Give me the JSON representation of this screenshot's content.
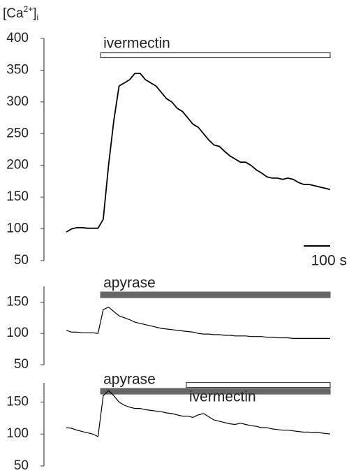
{
  "chart_data": [
    {
      "type": "line",
      "ylabel": {
        "open": "[Ca",
        "sup": "2+",
        "close": "]",
        "sub": "i"
      },
      "xlim": [
        0,
        1000
      ],
      "ylim": [
        50,
        400
      ],
      "yticks": [
        50,
        100,
        150,
        200,
        250,
        300,
        350,
        400
      ],
      "x": [
        0,
        20,
        40,
        60,
        80,
        100,
        120,
        140,
        160,
        180,
        200,
        220,
        240,
        260,
        280,
        300,
        320,
        340,
        360,
        380,
        400,
        420,
        440,
        460,
        480,
        500,
        520,
        540,
        560,
        580,
        600,
        620,
        640,
        660,
        680,
        700,
        720,
        740,
        760,
        780,
        800,
        820,
        840,
        860,
        880,
        900,
        920,
        940,
        960,
        980,
        1000
      ],
      "series": [
        {
          "color": "#000000",
          "values": [
            95,
            100,
            102,
            102,
            101,
            101,
            101,
            115,
            200,
            270,
            325,
            330,
            335,
            345,
            345,
            335,
            330,
            325,
            315,
            305,
            300,
            290,
            285,
            275,
            265,
            260,
            250,
            240,
            232,
            230,
            222,
            215,
            210,
            205,
            205,
            200,
            193,
            188,
            182,
            180,
            180,
            178,
            180,
            178,
            173,
            170,
            170,
            168,
            166,
            164,
            162
          ]
        }
      ],
      "bars": [
        {
          "label": "ivermectin",
          "start": 130,
          "end": 1000,
          "style": "open",
          "color": "#444444",
          "label_position": "above"
        }
      ],
      "scale_bar": {
        "value": 100,
        "label": "100 s"
      }
    },
    {
      "type": "line",
      "xlim": [
        0,
        1000
      ],
      "ylim": [
        50,
        175
      ],
      "yticks": [
        50,
        100,
        150
      ],
      "x": [
        0,
        20,
        40,
        60,
        80,
        100,
        120,
        140,
        160,
        180,
        200,
        220,
        240,
        260,
        280,
        300,
        320,
        340,
        360,
        380,
        400,
        420,
        440,
        460,
        480,
        500,
        520,
        540,
        560,
        580,
        600,
        620,
        640,
        660,
        680,
        700,
        720,
        740,
        760,
        780,
        800,
        820,
        840,
        860,
        880,
        900,
        920,
        940,
        960,
        980,
        1000
      ],
      "series": [
        {
          "color": "#000000",
          "values": [
            105,
            102,
            102,
            101,
            101,
            101,
            100,
            138,
            142,
            135,
            128,
            125,
            122,
            118,
            116,
            114,
            112,
            110,
            108,
            107,
            106,
            105,
            104,
            103,
            102,
            100,
            99,
            99,
            98,
            98,
            97,
            97,
            96,
            96,
            96,
            95,
            95,
            95,
            94,
            94,
            93,
            93,
            93,
            92,
            92,
            92,
            92,
            92,
            92,
            92,
            92
          ]
        }
      ],
      "bars": [
        {
          "label": "apyrase",
          "start": 130,
          "end": 1000,
          "style": "filled",
          "color": "#666666",
          "label_position": "above"
        }
      ]
    },
    {
      "type": "line",
      "xlim": [
        0,
        1000
      ],
      "ylim": [
        50,
        180
      ],
      "yticks": [
        50,
        100,
        150
      ],
      "x": [
        0,
        20,
        40,
        60,
        80,
        100,
        120,
        140,
        160,
        180,
        200,
        220,
        240,
        260,
        280,
        300,
        320,
        340,
        360,
        380,
        400,
        420,
        440,
        460,
        480,
        500,
        520,
        540,
        560,
        580,
        600,
        620,
        640,
        660,
        680,
        700,
        720,
        740,
        760,
        780,
        800,
        820,
        840,
        860,
        880,
        900,
        920,
        940,
        960,
        980,
        1000
      ],
      "series": [
        {
          "color": "#000000",
          "values": [
            110,
            109,
            106,
            104,
            102,
            100,
            96,
            160,
            168,
            160,
            150,
            145,
            142,
            140,
            140,
            138,
            137,
            136,
            135,
            133,
            132,
            130,
            128,
            128,
            126,
            130,
            132,
            127,
            122,
            120,
            118,
            116,
            115,
            117,
            115,
            113,
            112,
            110,
            110,
            108,
            107,
            106,
            106,
            105,
            104,
            103,
            103,
            102,
            102,
            101,
            100
          ]
        }
      ],
      "bars": [
        {
          "label": "apyrase",
          "start": 130,
          "end": 1000,
          "style": "filled",
          "color": "#666666",
          "label_position": "above"
        },
        {
          "label": "ivermectin",
          "start": 455,
          "end": 1000,
          "style": "open",
          "color": "#444444",
          "label_position": "below"
        }
      ]
    }
  ]
}
